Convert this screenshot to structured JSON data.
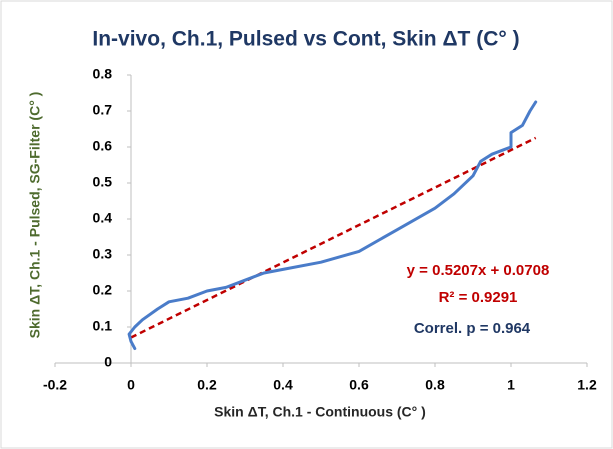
{
  "chart_data": {
    "type": "line",
    "title": "In-vivo, Ch.1, Pulsed vs Cont, Skin ΔT (C° )",
    "x_label": "Skin ΔT, Ch.1 - Continuous (C° )",
    "y_label": "Skin ΔT, Ch.1 - Pulsed, SG-Filter (C° )",
    "series": [
      {
        "name": "Pulsed vs Cont",
        "color": "#4a7cc9",
        "x": [
          0.01,
          0.0,
          -0.005,
          0.01,
          0.03,
          0.07,
          0.1,
          0.15,
          0.2,
          0.25,
          0.3,
          0.35,
          0.4,
          0.5,
          0.6,
          0.7,
          0.8,
          0.85,
          0.9,
          0.92,
          0.95,
          1.0,
          1.0,
          1.03,
          1.05,
          1.065
        ],
        "values": [
          0.04,
          0.06,
          0.08,
          0.1,
          0.12,
          0.15,
          0.17,
          0.18,
          0.2,
          0.21,
          0.23,
          0.25,
          0.26,
          0.28,
          0.31,
          0.37,
          0.43,
          0.47,
          0.52,
          0.56,
          0.58,
          0.6,
          0.64,
          0.66,
          0.7,
          0.725
        ]
      }
    ],
    "trendline": {
      "color": "#c00000",
      "slope": 0.5207,
      "intercept": 0.0708,
      "x": [
        0,
        1.065
      ]
    },
    "annotations": [
      "y = 0.5207x + 0.0708",
      "R² = 0.9291",
      "Correl. p = 0.964"
    ],
    "xlim": [
      -0.2,
      1.2
    ],
    "xticks": [
      -0.2,
      0,
      0.2,
      0.4,
      0.6,
      0.8,
      1,
      1.2
    ],
    "ylim": [
      0,
      0.8
    ],
    "yticks": [
      0,
      0.1,
      0.2,
      0.3,
      0.4,
      0.5,
      0.6,
      0.7,
      0.8
    ],
    "grid": false
  }
}
